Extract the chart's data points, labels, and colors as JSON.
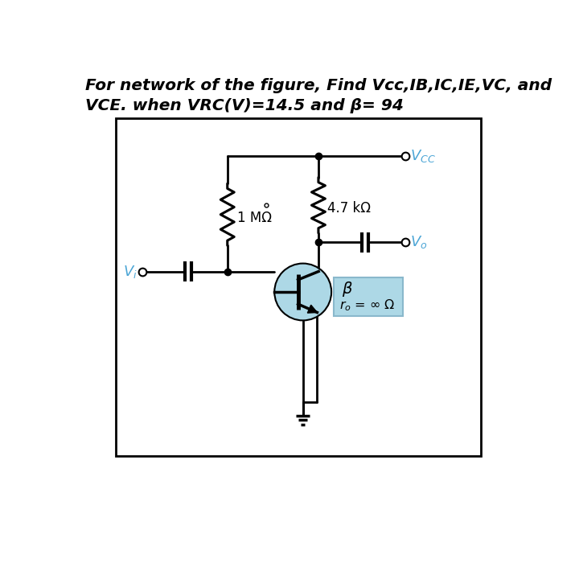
{
  "title_line1": "For network of the figure, Find Vcc,IB,IC,IE,VC, and",
  "title_line2": "VCE. when VRC(V)=14.5 and β= 94",
  "title_fontsize": 14.5,
  "background_color": "#ffffff",
  "vcc_label": "$V_{CC}$",
  "r1_label": "4.7 kΩ",
  "r2_label": "1 MΩ",
  "vi_label": "$V_i$",
  "vo_label": "$V_o$",
  "beta_label": "β",
  "ro_label": "$r_o$ = ∞ Ω",
  "transistor_fill": "#add8e6",
  "beta_box_fill": "#add8e6",
  "label_color_blue": "#4da6d6",
  "label_color_black": "#000000",
  "wire_lw": 2.0,
  "resistor_lw": 2.2,
  "cap_lw": 3.0,
  "transistor_lw": 2.5
}
